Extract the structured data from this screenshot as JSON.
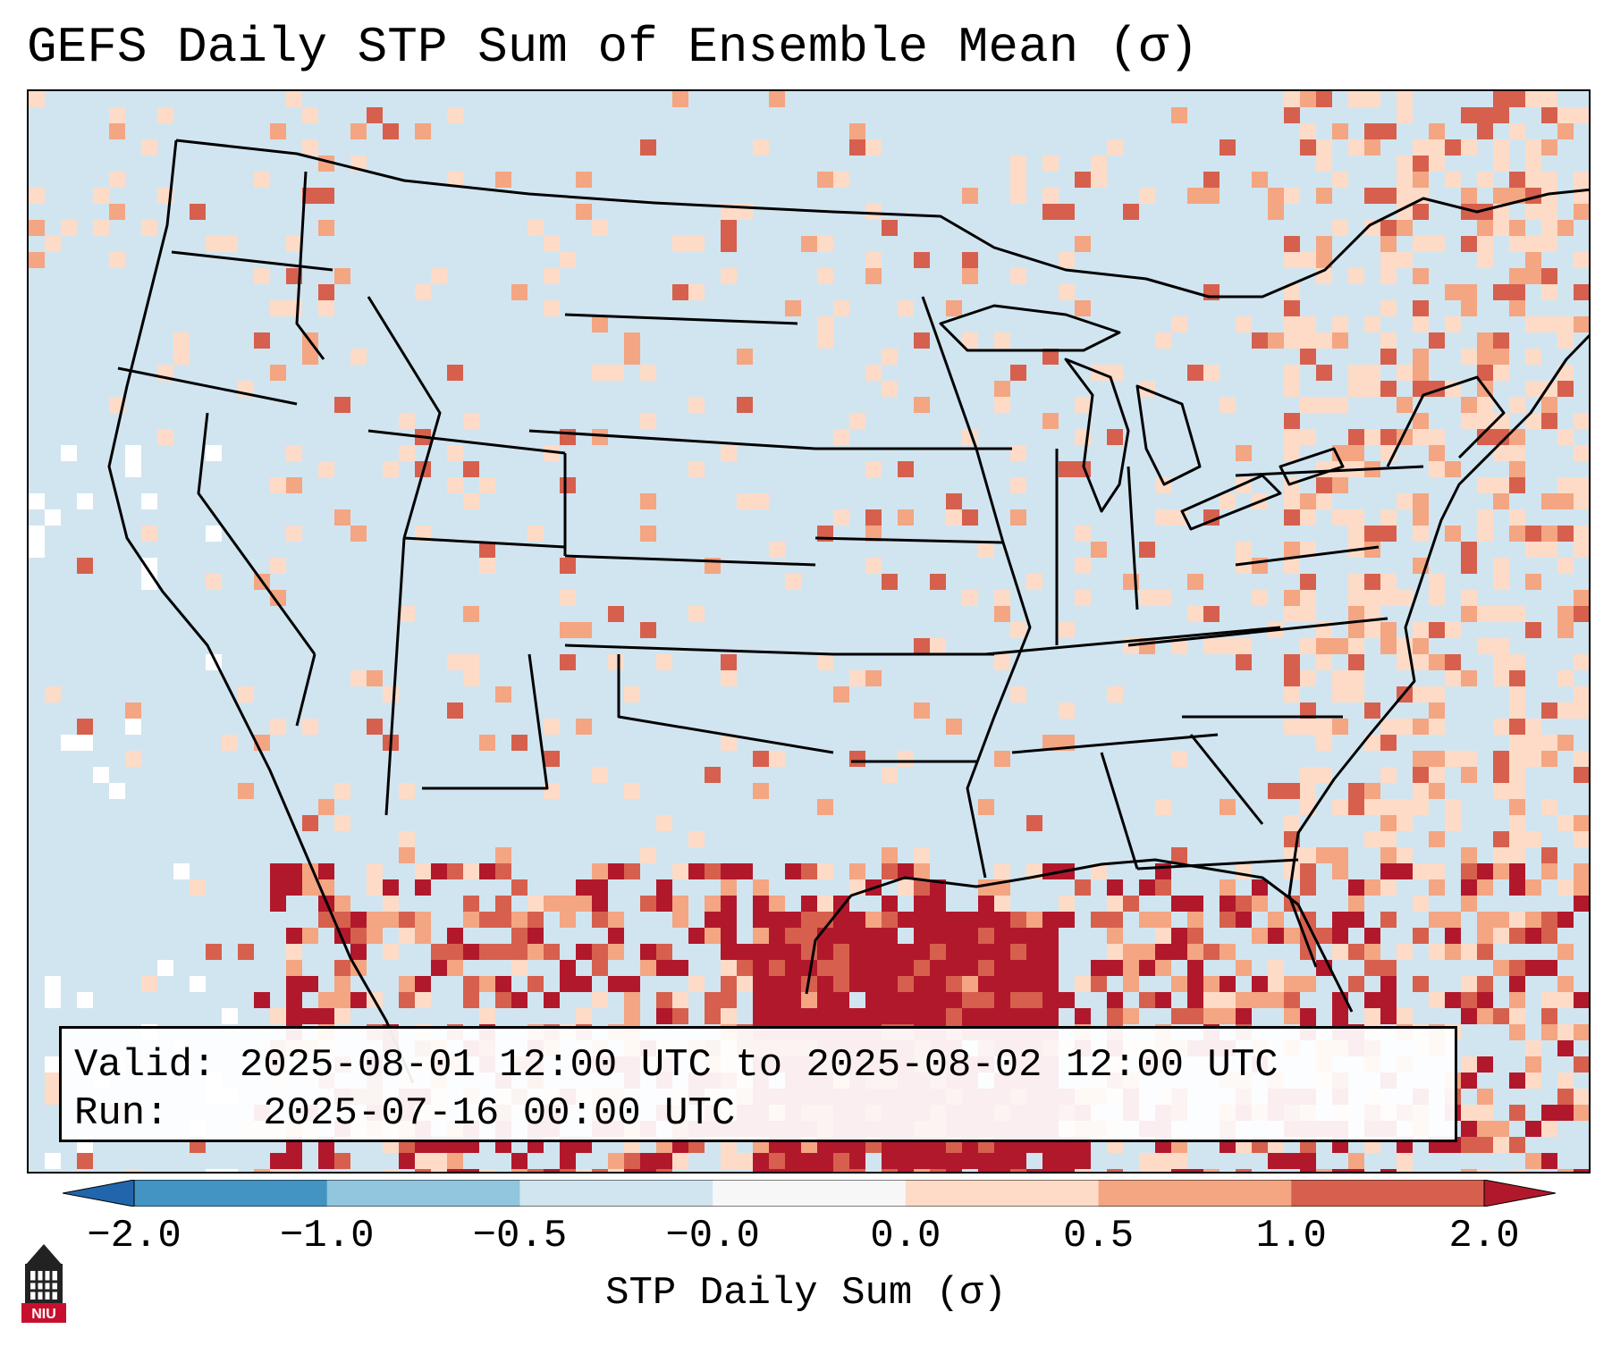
{
  "title": "GEFS Daily STP Sum of Ensemble Mean (σ)",
  "info": {
    "valid_label": "Valid:",
    "valid_value": "2025-08-01 12:00 UTC to 2025-08-02 12:00 UTC",
    "run_label": "Run:",
    "run_value": "2025-07-16 00:00 UTC"
  },
  "colorbar": {
    "label": "STP Daily Sum (σ)",
    "ticks": [
      "−2.0",
      "−1.0",
      "−0.5",
      "−0.0",
      "0.0",
      "0.5",
      "1.0",
      "2.0"
    ],
    "colors": [
      "#4393c3",
      "#92c5de",
      "#d1e5f0",
      "#f7f7f7",
      "#fddbc7",
      "#f4a582",
      "#d6604d"
    ],
    "under_color": "#2166ac",
    "over_color": "#b2182b"
  },
  "map": {
    "ocean_color": "#d1e5f0",
    "region": "Contiguous United States"
  },
  "logo": {
    "text": "NIU"
  }
}
